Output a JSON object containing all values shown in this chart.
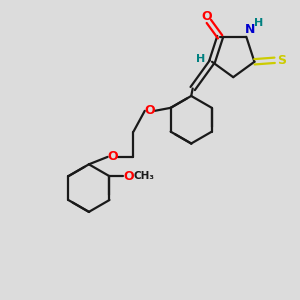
{
  "bg_color": "#dcdcdc",
  "bond_color": "#1a1a1a",
  "lw": 1.6,
  "font_size": 8.5,
  "colors": {
    "O": "#ff0000",
    "N": "#0000cd",
    "S_thioxo": "#cccc00",
    "H": "#008080",
    "C": "#1a1a1a"
  },
  "xlim": [
    0,
    10
  ],
  "ylim": [
    0,
    10
  ]
}
